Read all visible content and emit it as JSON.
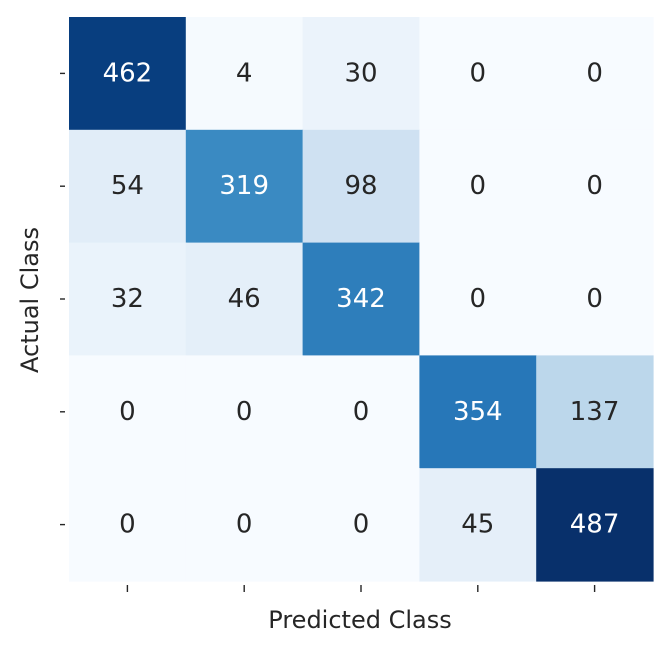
{
  "chart_data": {
    "type": "heatmap",
    "title": "",
    "xlabel": "Predicted Class",
    "ylabel": "Actual Class",
    "x_tick_labels": [
      "",
      "",
      "",
      "",
      ""
    ],
    "y_tick_labels": [
      "",
      "",
      "",
      "",
      ""
    ],
    "matrix": [
      [
        462,
        4,
        30,
        0,
        0
      ],
      [
        54,
        319,
        98,
        0,
        0
      ],
      [
        32,
        46,
        342,
        0,
        0
      ],
      [
        0,
        0,
        0,
        354,
        137
      ],
      [
        0,
        0,
        0,
        45,
        487
      ]
    ],
    "value_range": [
      0,
      487
    ],
    "colormap": "Blues",
    "colorbar": false,
    "grid": false
  }
}
